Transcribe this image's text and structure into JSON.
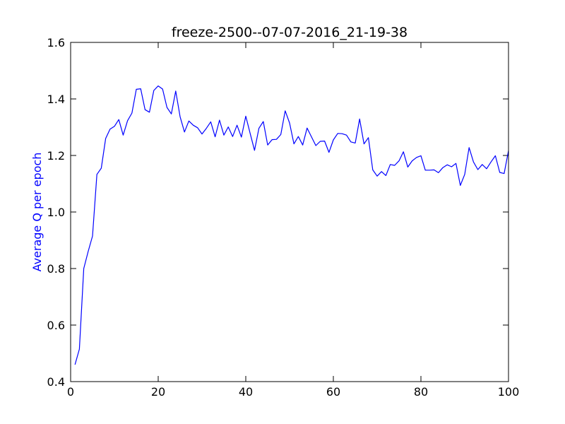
{
  "chart_data": {
    "type": "line",
    "title": "freeze-2500--07-07-2016_21-19-38",
    "xlabel": "",
    "ylabel": "Average Q per epoch",
    "xlim": [
      0,
      100
    ],
    "ylim": [
      0.4,
      1.6
    ],
    "x_ticks": [
      0,
      20,
      40,
      60,
      80,
      100
    ],
    "y_ticks": [
      0.4,
      0.6,
      0.8,
      1.0,
      1.2,
      1.4,
      1.6
    ],
    "x_tick_labels": [
      "0",
      "20",
      "40",
      "60",
      "80",
      "100"
    ],
    "y_tick_labels": [
      "0.4",
      "0.6",
      "0.8",
      "1.0",
      "1.2",
      "1.4",
      "1.6"
    ],
    "grid": false,
    "series": [
      {
        "color": "#0000ff",
        "x": [
          1,
          2,
          3,
          4,
          5,
          6,
          7,
          8,
          9,
          10,
          11,
          12,
          13,
          14,
          15,
          16,
          17,
          18,
          19,
          20,
          21,
          22,
          23,
          24,
          25,
          26,
          27,
          28,
          29,
          30,
          31,
          32,
          33,
          34,
          35,
          36,
          37,
          38,
          39,
          40,
          41,
          42,
          43,
          44,
          45,
          46,
          47,
          48,
          49,
          50,
          51,
          52,
          53,
          54,
          55,
          56,
          57,
          58,
          59,
          60,
          61,
          62,
          63,
          64,
          65,
          66,
          67,
          68,
          69,
          70,
          71,
          72,
          73,
          74,
          75,
          76,
          77,
          78,
          79,
          80,
          81,
          82,
          83,
          84,
          85,
          86,
          87,
          88,
          89,
          90,
          91,
          92,
          93,
          94,
          95,
          96,
          97,
          98,
          99,
          100
        ],
        "values": [
          0.46,
          0.515,
          0.8,
          0.86,
          0.915,
          1.133,
          1.155,
          1.26,
          1.293,
          1.303,
          1.327,
          1.272,
          1.323,
          1.35,
          1.434,
          1.436,
          1.362,
          1.353,
          1.43,
          1.446,
          1.435,
          1.37,
          1.347,
          1.428,
          1.337,
          1.283,
          1.322,
          1.307,
          1.298,
          1.276,
          1.296,
          1.319,
          1.266,
          1.325,
          1.272,
          1.301,
          1.267,
          1.307,
          1.265,
          1.339,
          1.278,
          1.218,
          1.296,
          1.32,
          1.237,
          1.256,
          1.257,
          1.274,
          1.358,
          1.315,
          1.241,
          1.267,
          1.237,
          1.297,
          1.266,
          1.235,
          1.25,
          1.251,
          1.211,
          1.255,
          1.278,
          1.277,
          1.272,
          1.248,
          1.244,
          1.329,
          1.241,
          1.263,
          1.149,
          1.127,
          1.143,
          1.129,
          1.168,
          1.165,
          1.181,
          1.213,
          1.159,
          1.181,
          1.193,
          1.199,
          1.148,
          1.148,
          1.149,
          1.139,
          1.157,
          1.167,
          1.16,
          1.172,
          1.094,
          1.133,
          1.228,
          1.177,
          1.15,
          1.168,
          1.153,
          1.177,
          1.199,
          1.14,
          1.136,
          1.217
        ]
      }
    ],
    "colors": {
      "line": "#0000ff",
      "ylabel": "#0000ff",
      "axes": "#000000",
      "background": "#ffffff"
    }
  }
}
